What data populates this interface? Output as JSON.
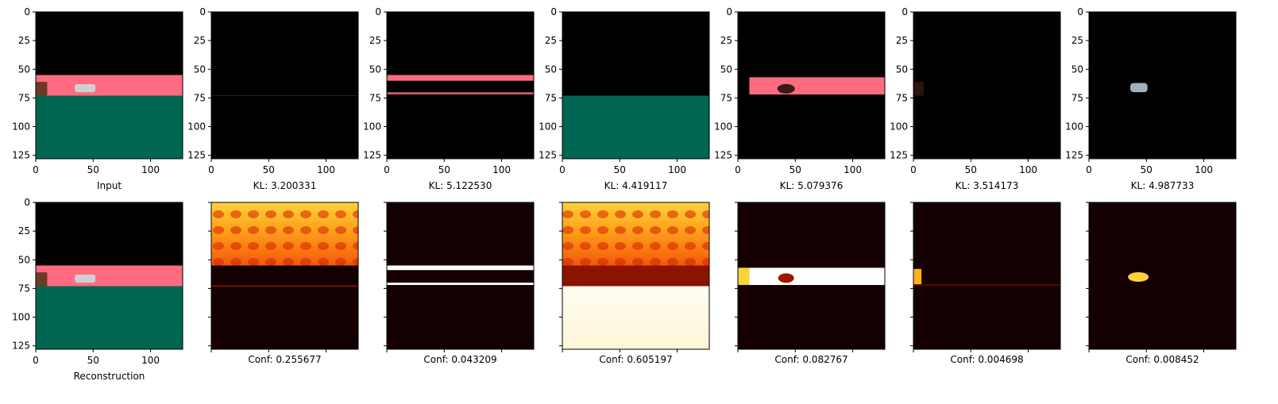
{
  "colors": {
    "black": "#000000",
    "pink": "#ff6b80",
    "teal": "#006652",
    "brown": "#6b3a26",
    "car": "#d0d0d0",
    "heat_low": "#140000",
    "heat_mid": "#d21e00",
    "heat_high": "#ffff60",
    "heat_white": "#ffffff"
  },
  "chart_data": [
    {
      "type": "heatmap",
      "row": 0,
      "col": 0,
      "label": "Input",
      "content": "full-scene",
      "xticks": [
        "0",
        "50",
        "100"
      ],
      "yticks": [
        "0",
        "25",
        "50",
        "75",
        "100",
        "125"
      ],
      "xlim": [
        0,
        128
      ],
      "ylim": [
        128,
        0
      ]
    },
    {
      "type": "heatmap",
      "row": 0,
      "col": 1,
      "label": "KL: 3.200331",
      "content": "empty",
      "xticks": [
        "0",
        "50",
        "100"
      ],
      "yticks": [
        "0",
        "25",
        "50",
        "75",
        "100",
        "125"
      ],
      "xlim": [
        0,
        128
      ],
      "ylim": [
        128,
        0
      ]
    },
    {
      "type": "heatmap",
      "row": 0,
      "col": 2,
      "label": "KL: 5.122530",
      "content": "pink-band",
      "xticks": [
        "0",
        "50",
        "100"
      ],
      "yticks": [
        "0",
        "25",
        "50",
        "75",
        "100",
        "125"
      ],
      "xlim": [
        0,
        128
      ],
      "ylim": [
        128,
        0
      ]
    },
    {
      "type": "heatmap",
      "row": 0,
      "col": 3,
      "label": "KL: 4.419117",
      "content": "teal-ground",
      "xticks": [
        "0",
        "50",
        "100"
      ],
      "yticks": [
        "0",
        "25",
        "50",
        "75",
        "100",
        "125"
      ],
      "xlim": [
        0,
        128
      ],
      "ylim": [
        128,
        0
      ]
    },
    {
      "type": "heatmap",
      "row": 0,
      "col": 4,
      "label": "KL: 5.079376",
      "content": "pink-object-band",
      "xticks": [
        "0",
        "50",
        "100"
      ],
      "yticks": [
        "0",
        "25",
        "50",
        "75",
        "100",
        "125"
      ],
      "xlim": [
        0,
        128
      ],
      "ylim": [
        128,
        0
      ]
    },
    {
      "type": "heatmap",
      "row": 0,
      "col": 5,
      "label": "KL: 3.514173",
      "content": "faint-brown",
      "xticks": [
        "0",
        "50",
        "100"
      ],
      "yticks": [
        "0",
        "25",
        "50",
        "75",
        "100",
        "125"
      ],
      "xlim": [
        0,
        128
      ],
      "ylim": [
        128,
        0
      ]
    },
    {
      "type": "heatmap",
      "row": 0,
      "col": 6,
      "label": "KL: 4.987733",
      "content": "car-only",
      "xticks": [
        "0",
        "50",
        "100"
      ],
      "yticks": [
        "0",
        "25",
        "50",
        "75",
        "100",
        "125"
      ],
      "xlim": [
        0,
        128
      ],
      "ylim": [
        128,
        0
      ]
    },
    {
      "type": "heatmap",
      "row": 1,
      "col": 0,
      "label": "Reconstruction",
      "content": "full-scene",
      "xticks": [
        "0",
        "50",
        "100"
      ],
      "yticks": [
        "0",
        "25",
        "50",
        "75",
        "100",
        "125"
      ],
      "xlim": [
        0,
        128
      ],
      "ylim": [
        128,
        0
      ]
    },
    {
      "type": "heatmap",
      "row": 1,
      "col": 1,
      "label": "Conf: 0.255677",
      "content": "heat-sky",
      "xticks": [],
      "yticks": [],
      "xlim": [
        0,
        128
      ],
      "ylim": [
        128,
        0
      ]
    },
    {
      "type": "heatmap",
      "row": 1,
      "col": 2,
      "label": "Conf: 0.043209",
      "content": "heat-band-lines",
      "xticks": [],
      "yticks": [],
      "xlim": [
        0,
        128
      ],
      "ylim": [
        128,
        0
      ]
    },
    {
      "type": "heatmap",
      "row": 1,
      "col": 3,
      "label": "Conf: 0.605197",
      "content": "heat-sky-ground",
      "xticks": [],
      "yticks": [],
      "xlim": [
        0,
        128
      ],
      "ylim": [
        128,
        0
      ]
    },
    {
      "type": "heatmap",
      "row": 1,
      "col": 4,
      "label": "Conf: 0.082767",
      "content": "heat-band-solid",
      "xticks": [],
      "yticks": [],
      "xlim": [
        0,
        128
      ],
      "ylim": [
        128,
        0
      ]
    },
    {
      "type": "heatmap",
      "row": 1,
      "col": 5,
      "label": "Conf: 0.004698",
      "content": "heat-faint",
      "xticks": [],
      "yticks": [],
      "xlim": [
        0,
        128
      ],
      "ylim": [
        128,
        0
      ]
    },
    {
      "type": "heatmap",
      "row": 1,
      "col": 6,
      "label": "Conf: 0.008452",
      "content": "heat-car",
      "xticks": [],
      "yticks": [],
      "xlim": [
        0,
        128
      ],
      "ylim": [
        128,
        0
      ]
    }
  ]
}
